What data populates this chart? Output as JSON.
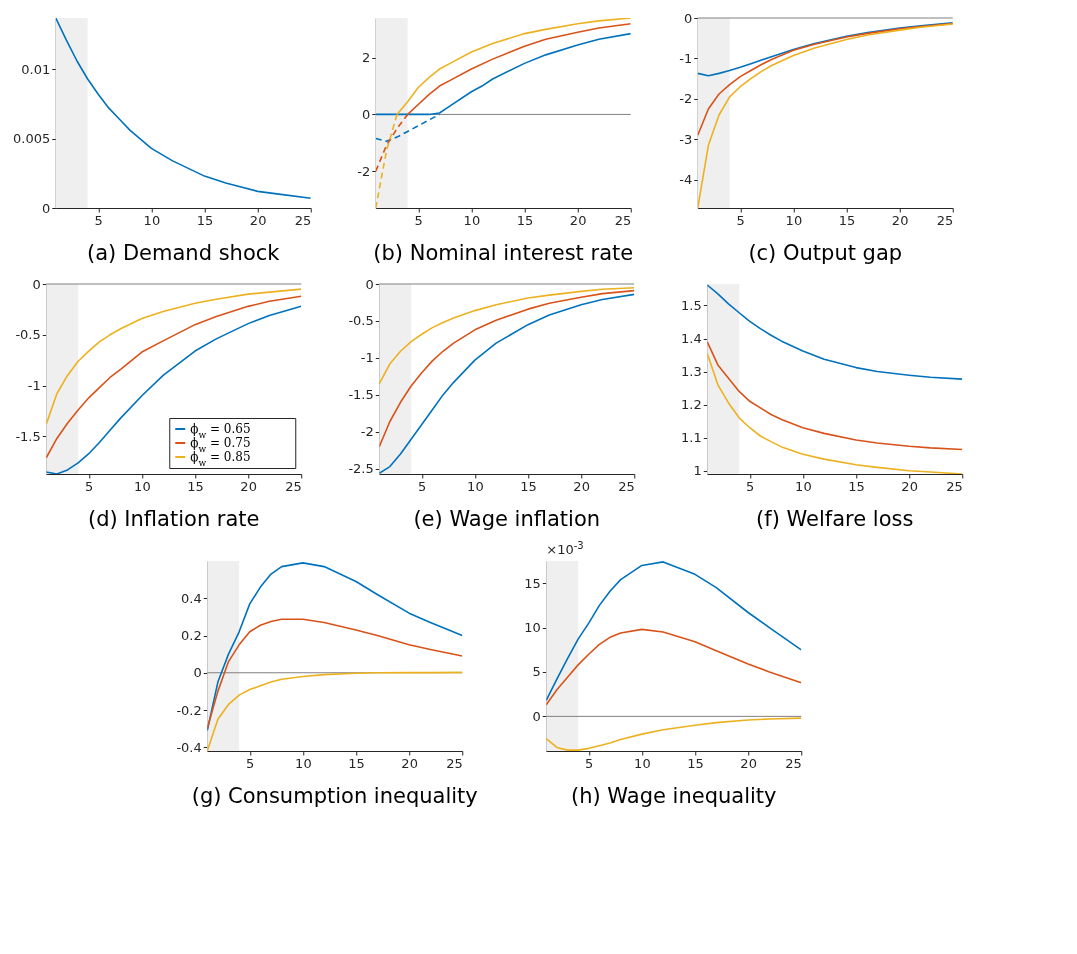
{
  "chart_data": [
    {
      "type": "line",
      "title": "(a) Demand shock",
      "x": [
        1,
        2,
        3,
        4,
        5,
        6,
        7,
        8,
        10,
        12,
        15,
        17,
        20,
        22,
        25
      ],
      "xlim": [
        1,
        25
      ],
      "xticks": [
        5,
        10,
        15,
        20,
        25
      ],
      "ylim": [
        0,
        0.0137
      ],
      "yticks": [
        0,
        0.005,
        0.01
      ],
      "bands": [
        {
          "axis": "x",
          "from": 1,
          "to": 4,
          "color": "#efefef"
        }
      ],
      "series": [
        {
          "color": "#0072bd",
          "values": [
            0.0137,
            0.0121,
            0.0106,
            0.0093,
            0.0082,
            0.0072,
            0.0064,
            0.0056,
            0.0043,
            0.0034,
            0.0023,
            0.0018,
            0.0012,
            0.001,
            0.0007
          ]
        }
      ]
    },
    {
      "type": "line",
      "title": "(b) Nominal interest rate",
      "xlim": [
        1,
        25
      ],
      "xticks": [
        5,
        10,
        15,
        20,
        25
      ],
      "ylim": [
        -3.3,
        3.4
      ],
      "yticks": [
        -2,
        0,
        2
      ],
      "bands": [
        {
          "axis": "x",
          "from": 1,
          "to": 4,
          "color": "#efefef"
        }
      ],
      "ref_lines": [
        {
          "axis": "y",
          "value": 0,
          "color": "#808080"
        }
      ],
      "series": [
        {
          "color": "#0072bd",
          "x": [
            1,
            2,
            3,
            4,
            5,
            6,
            7,
            8,
            10,
            11,
            12,
            15,
            17,
            20,
            22,
            25
          ],
          "values": [
            0,
            0,
            0,
            0,
            0,
            0,
            0.05,
            0.3,
            0.8,
            1.0,
            1.25,
            1.8,
            2.1,
            2.45,
            2.65,
            2.85
          ]
        },
        {
          "color": "#d95319",
          "x": [
            4,
            5,
            6,
            7,
            8,
            10,
            12,
            15,
            17,
            20,
            22,
            25
          ],
          "values": [
            0,
            0.35,
            0.7,
            1.0,
            1.2,
            1.6,
            1.95,
            2.4,
            2.65,
            2.9,
            3.05,
            3.2
          ]
        },
        {
          "color": "#edb120",
          "x": [
            3,
            4,
            5,
            6,
            7,
            8,
            10,
            12,
            15,
            17,
            20,
            22,
            25
          ],
          "values": [
            0,
            0.45,
            0.95,
            1.3,
            1.6,
            1.8,
            2.2,
            2.5,
            2.85,
            3.0,
            3.2,
            3.3,
            3.4
          ]
        },
        {
          "color": "#0072bd",
          "line_style": "dashed",
          "x": [
            1,
            2,
            3,
            4,
            5,
            6,
            7
          ],
          "values": [
            -0.85,
            -0.95,
            -0.8,
            -0.6,
            -0.4,
            -0.2,
            0
          ]
        },
        {
          "color": "#d95319",
          "line_style": "dashed",
          "x": [
            1,
            2,
            3,
            4
          ],
          "values": [
            -2.0,
            -1.1,
            -0.5,
            0
          ]
        },
        {
          "color": "#edb120",
          "line_style": "dashed",
          "x": [
            1,
            2,
            3
          ],
          "values": [
            -3.3,
            -1.3,
            0
          ]
        }
      ]
    },
    {
      "type": "line",
      "title": "(c) Output gap",
      "x": [
        1,
        2,
        3,
        4,
        5,
        6,
        7,
        8,
        10,
        12,
        15,
        17,
        20,
        22,
        25
      ],
      "xlim": [
        1,
        25
      ],
      "xticks": [
        5,
        10,
        15,
        20,
        25
      ],
      "ylim": [
        -4.7,
        0
      ],
      "yticks": [
        -4,
        -3,
        -2,
        -1,
        0
      ],
      "bands": [
        {
          "axis": "x",
          "from": 1,
          "to": 4,
          "color": "#efefef"
        }
      ],
      "ref_lines": [
        {
          "axis": "y",
          "value": 0,
          "color": "#808080"
        }
      ],
      "series": [
        {
          "color": "#0072bd",
          "values": [
            -1.37,
            -1.43,
            -1.37,
            -1.3,
            -1.22,
            -1.13,
            -1.04,
            -0.95,
            -0.78,
            -0.63,
            -0.45,
            -0.36,
            -0.25,
            -0.19,
            -0.12
          ]
        },
        {
          "color": "#d95319",
          "values": [
            -2.9,
            -2.25,
            -1.88,
            -1.65,
            -1.45,
            -1.3,
            -1.15,
            -1.02,
            -0.8,
            -0.65,
            -0.47,
            -0.38,
            -0.27,
            -0.21,
            -0.14
          ]
        },
        {
          "color": "#edb120",
          "values": [
            -4.7,
            -3.15,
            -2.4,
            -1.95,
            -1.7,
            -1.5,
            -1.32,
            -1.17,
            -0.93,
            -0.74,
            -0.53,
            -0.42,
            -0.3,
            -0.23,
            -0.15
          ]
        }
      ]
    },
    {
      "type": "line",
      "title": "(d) Inflation rate",
      "legend": "bottom right",
      "x": [
        1,
        2,
        3,
        4,
        5,
        6,
        7,
        8,
        10,
        12,
        15,
        17,
        20,
        22,
        25
      ],
      "xlim": [
        1,
        25
      ],
      "xticks": [
        5,
        10,
        15,
        20,
        25
      ],
      "ylim": [
        -1.87,
        0
      ],
      "yticks": [
        -1.5,
        -1,
        -0.5,
        0
      ],
      "bands": [
        {
          "axis": "x",
          "from": 1,
          "to": 4,
          "color": "#efefef"
        }
      ],
      "ref_lines": [
        {
          "axis": "y",
          "value": 0,
          "color": "#808080"
        }
      ],
      "series": [
        {
          "name": "ϕ$_{w}$ = 0.65",
          "color": "#0072bd",
          "values": [
            -1.85,
            -1.87,
            -1.83,
            -1.76,
            -1.67,
            -1.56,
            -1.44,
            -1.32,
            -1.1,
            -0.9,
            -0.66,
            -0.54,
            -0.39,
            -0.31,
            -0.22
          ]
        },
        {
          "name": "ϕ$_{w}$ = 0.75",
          "color": "#d95319",
          "values": [
            -1.71,
            -1.52,
            -1.37,
            -1.24,
            -1.12,
            -1.02,
            -0.92,
            -0.84,
            -0.67,
            -0.56,
            -0.4,
            -0.32,
            -0.22,
            -0.17,
            -0.12
          ]
        },
        {
          "name": "ϕ$_{w}$ = 0.85",
          "color": "#edb120",
          "values": [
            -1.38,
            -1.08,
            -0.9,
            -0.76,
            -0.66,
            -0.57,
            -0.5,
            -0.44,
            -0.34,
            -0.27,
            -0.19,
            -0.15,
            -0.1,
            -0.08,
            -0.05
          ]
        }
      ]
    },
    {
      "type": "line",
      "title": "(e) Wage inflation",
      "x": [
        1,
        2,
        3,
        4,
        5,
        6,
        7,
        8,
        10,
        12,
        15,
        17,
        20,
        22,
        25
      ],
      "xlim": [
        1,
        25
      ],
      "xticks": [
        5,
        10,
        15,
        20,
        25
      ],
      "ylim": [
        -2.57,
        0
      ],
      "yticks": [
        -2.5,
        -2,
        -1.5,
        -1,
        -0.5,
        0
      ],
      "bands": [
        {
          "axis": "x",
          "from": 1,
          "to": 4,
          "color": "#efefef"
        }
      ],
      "ref_lines": [
        {
          "axis": "y",
          "value": 0,
          "color": "#808080"
        }
      ],
      "series": [
        {
          "color": "#0072bd",
          "values": [
            -2.56,
            -2.47,
            -2.3,
            -2.1,
            -1.9,
            -1.7,
            -1.5,
            -1.33,
            -1.03,
            -0.8,
            -0.55,
            -0.42,
            -0.28,
            -0.21,
            -0.14
          ]
        },
        {
          "color": "#d95319",
          "values": [
            -2.2,
            -1.86,
            -1.6,
            -1.38,
            -1.2,
            -1.04,
            -0.91,
            -0.8,
            -0.62,
            -0.49,
            -0.34,
            -0.26,
            -0.18,
            -0.13,
            -0.09
          ]
        },
        {
          "color": "#edb120",
          "values": [
            -1.35,
            -1.08,
            -0.91,
            -0.78,
            -0.68,
            -0.59,
            -0.52,
            -0.46,
            -0.36,
            -0.28,
            -0.19,
            -0.15,
            -0.1,
            -0.07,
            -0.05
          ]
        }
      ]
    },
    {
      "type": "line",
      "title": "(f) Welfare loss",
      "x": [
        1,
        2,
        3,
        4,
        5,
        6,
        7,
        8,
        10,
        12,
        15,
        17,
        20,
        22,
        25
      ],
      "xlim": [
        1,
        25
      ],
      "xticks": [
        5,
        10,
        15,
        20,
        25
      ],
      "ylim": [
        0.99,
        1.565
      ],
      "yticks": [
        1,
        1.1,
        1.2,
        1.3,
        1.4,
        1.5
      ],
      "bands": [
        {
          "axis": "x",
          "from": 1,
          "to": 4,
          "color": "#efefef"
        }
      ],
      "series": [
        {
          "color": "#0072bd",
          "values": [
            1.562,
            1.535,
            1.505,
            1.478,
            1.452,
            1.43,
            1.41,
            1.392,
            1.362,
            1.337,
            1.312,
            1.3,
            1.289,
            1.283,
            1.277
          ]
        },
        {
          "color": "#d95319",
          "values": [
            1.39,
            1.32,
            1.28,
            1.24,
            1.21,
            1.19,
            1.17,
            1.155,
            1.13,
            1.113,
            1.093,
            1.084,
            1.074,
            1.069,
            1.064
          ]
        },
        {
          "color": "#edb120",
          "values": [
            1.355,
            1.26,
            1.205,
            1.16,
            1.13,
            1.105,
            1.088,
            1.072,
            1.05,
            1.035,
            1.018,
            1.01,
            1.0,
            0.996,
            0.99
          ]
        }
      ]
    },
    {
      "type": "line",
      "title": "(g) Consumption inequality",
      "x": [
        1,
        2,
        3,
        4,
        5,
        6,
        7,
        8,
        10,
        12,
        15,
        17,
        20,
        22,
        25
      ],
      "xlim": [
        1,
        25
      ],
      "xticks": [
        5,
        10,
        15,
        20,
        25
      ],
      "ylim": [
        -0.42,
        0.6
      ],
      "yticks": [
        -0.4,
        -0.2,
        0,
        0.2,
        0.4
      ],
      "bands": [
        {
          "axis": "x",
          "from": 1,
          "to": 4,
          "color": "#efefef"
        }
      ],
      "ref_lines": [
        {
          "axis": "y",
          "value": 0,
          "color": "#808080"
        }
      ],
      "series": [
        {
          "color": "#0072bd",
          "values": [
            -0.31,
            -0.05,
            0.1,
            0.22,
            0.37,
            0.46,
            0.53,
            0.57,
            0.59,
            0.57,
            0.49,
            0.42,
            0.32,
            0.27,
            0.2
          ]
        },
        {
          "color": "#d95319",
          "values": [
            -0.3,
            -0.1,
            0.06,
            0.15,
            0.22,
            0.255,
            0.275,
            0.287,
            0.287,
            0.27,
            0.23,
            0.2,
            0.15,
            0.125,
            0.09
          ]
        },
        {
          "color": "#edb120",
          "values": [
            -0.42,
            -0.25,
            -0.17,
            -0.12,
            -0.09,
            -0.07,
            -0.05,
            -0.035,
            -0.02,
            -0.01,
            -0.003,
            0,
            0.001,
            0.001,
            0.002
          ]
        }
      ]
    },
    {
      "type": "line",
      "title": "(h) Wage inequality",
      "annotations": [
        "×10$^{-3}$"
      ],
      "x": [
        1,
        2,
        3,
        4,
        5,
        6,
        7,
        8,
        10,
        12,
        15,
        17,
        20,
        22,
        25
      ],
      "xlim": [
        1,
        25
      ],
      "xticks": [
        5,
        10,
        15,
        20,
        25
      ],
      "ylim": [
        -3.9,
        17.5
      ],
      "yticks": [
        0,
        5,
        10,
        15
      ],
      "bands": [
        {
          "axis": "x",
          "from": 1,
          "to": 4,
          "color": "#efefef"
        }
      ],
      "ref_lines": [
        {
          "axis": "y",
          "value": 0,
          "color": "#808080"
        }
      ],
      "series": [
        {
          "color": "#0072bd",
          "values": [
            1.8,
            4.2,
            6.5,
            8.7,
            10.5,
            12.5,
            14.1,
            15.4,
            17.0,
            17.4,
            16.0,
            14.5,
            11.7,
            10.0,
            7.5
          ]
        },
        {
          "color": "#d95319",
          "values": [
            1.3,
            3.0,
            4.4,
            5.8,
            7.0,
            8.1,
            8.9,
            9.4,
            9.8,
            9.5,
            8.4,
            7.4,
            5.9,
            5.0,
            3.8
          ]
        },
        {
          "color": "#edb120",
          "values": [
            -2.5,
            -3.5,
            -3.8,
            -3.8,
            -3.6,
            -3.3,
            -3.0,
            -2.6,
            -2.0,
            -1.5,
            -1.0,
            -0.7,
            -0.4,
            -0.3,
            -0.2
          ]
        }
      ]
    }
  ]
}
